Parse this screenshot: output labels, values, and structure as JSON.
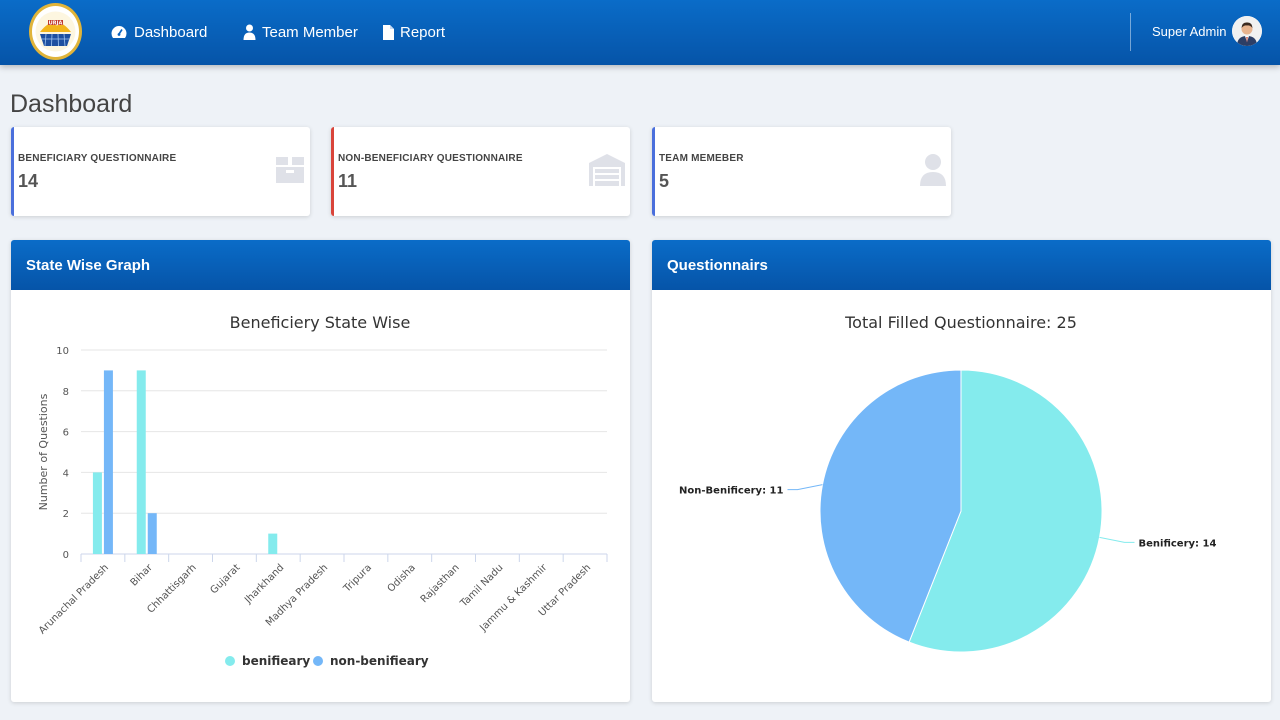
{
  "nav": {
    "logo_text": "URJA",
    "items": [
      {
        "label": "Dashboard",
        "icon": "tachometer-icon"
      },
      {
        "label": "Team Member",
        "icon": "user-icon"
      },
      {
        "label": "Report",
        "icon": "file-icon"
      }
    ],
    "user_name": "Super Admin"
  },
  "page_title": "Dashboard",
  "stats": [
    {
      "label": "BENEFICIARY QUESTIONNAIRE",
      "value": "14",
      "accent": "#4a6fdc",
      "icon": "box-icon"
    },
    {
      "label": "NON-BENEFICIARY QUESTIONNAIRE",
      "value": "11",
      "accent": "#d9443a",
      "icon": "warehouse-icon"
    },
    {
      "label": "TEAM MEMEBER",
      "value": "5",
      "accent": "#4a6fdc",
      "icon": "user-icon"
    }
  ],
  "panels": {
    "state": {
      "title": "State Wise Graph"
    },
    "questionnaire": {
      "title": "Questionnairs"
    }
  },
  "colors": {
    "benifieary": "#84ebed",
    "non_benifieary": "#74b7f8",
    "nav_blue": "#0862c0"
  },
  "chart_data": [
    {
      "type": "bar",
      "title": "Beneficiery State Wise",
      "ylabel": "Number of Questions",
      "ylim": [
        0,
        10
      ],
      "yticks": [
        0,
        2,
        4,
        6,
        8,
        10
      ],
      "grid": true,
      "legend": "bottom-center",
      "categories": [
        "Arunachal Pradesh",
        "Bihar",
        "Chhattisgarh",
        "Gujarat",
        "Jharkhand",
        "Madhya Pradesh",
        "Tripura",
        "Odisha",
        "Rajasthan",
        "Tamil Nadu",
        "Jammu & Kashmir",
        "Uttar Pradesh"
      ],
      "series": [
        {
          "name": "benifieary",
          "values": [
            4,
            9,
            0,
            0,
            1,
            0,
            0,
            0,
            0,
            0,
            0,
            0
          ]
        },
        {
          "name": "non-benifieary",
          "values": [
            9,
            2,
            0,
            0,
            0,
            0,
            0,
            0,
            0,
            0,
            0,
            0
          ]
        }
      ]
    },
    {
      "type": "pie",
      "title": "Total Filled Questionnaire: 25",
      "slices": [
        {
          "label": "Benificery: 14",
          "value": 14
        },
        {
          "label": "Non-Benificery: 11",
          "value": 11
        }
      ]
    }
  ]
}
